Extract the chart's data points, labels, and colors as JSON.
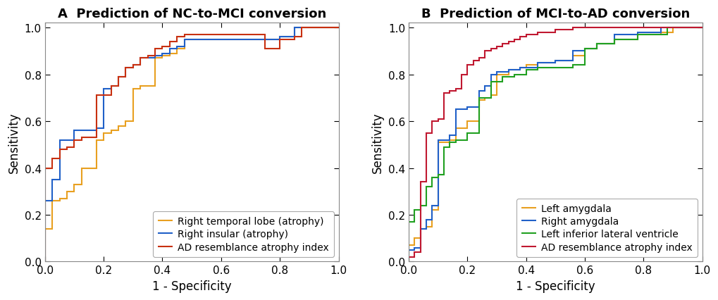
{
  "panel_A": {
    "title": "A  Prediction of NC-to-MCI conversion",
    "curves": [
      {
        "label": "Right temporal lobe (atrophy)",
        "color": "#E8A020",
        "fpr": [
          0.0,
          0.0,
          0.025,
          0.025,
          0.05,
          0.05,
          0.075,
          0.075,
          0.1,
          0.1,
          0.125,
          0.125,
          0.175,
          0.175,
          0.2,
          0.2,
          0.225,
          0.225,
          0.25,
          0.25,
          0.275,
          0.275,
          0.3,
          0.3,
          0.325,
          0.325,
          0.375,
          0.375,
          0.4,
          0.4,
          0.425,
          0.425,
          0.45,
          0.45,
          0.475,
          0.475,
          0.8,
          0.8,
          0.85,
          0.85,
          1.0
        ],
        "tpr": [
          0.0,
          0.14,
          0.14,
          0.26,
          0.26,
          0.27,
          0.27,
          0.3,
          0.3,
          0.33,
          0.33,
          0.4,
          0.4,
          0.52,
          0.52,
          0.55,
          0.55,
          0.56,
          0.56,
          0.58,
          0.58,
          0.6,
          0.6,
          0.74,
          0.74,
          0.75,
          0.75,
          0.87,
          0.87,
          0.88,
          0.88,
          0.89,
          0.89,
          0.91,
          0.91,
          0.95,
          0.95,
          0.96,
          0.96,
          1.0,
          1.0
        ]
      },
      {
        "label": "Right insular (atrophy)",
        "color": "#2060C8",
        "fpr": [
          0.0,
          0.0,
          0.025,
          0.025,
          0.05,
          0.05,
          0.1,
          0.1,
          0.175,
          0.175,
          0.2,
          0.2,
          0.225,
          0.225,
          0.25,
          0.25,
          0.275,
          0.275,
          0.3,
          0.3,
          0.325,
          0.325,
          0.375,
          0.375,
          0.4,
          0.4,
          0.425,
          0.425,
          0.45,
          0.45,
          0.475,
          0.475,
          0.8,
          0.8,
          0.85,
          0.85,
          1.0
        ],
        "tpr": [
          0.0,
          0.26,
          0.26,
          0.35,
          0.35,
          0.52,
          0.52,
          0.56,
          0.56,
          0.57,
          0.57,
          0.74,
          0.74,
          0.75,
          0.75,
          0.79,
          0.79,
          0.83,
          0.83,
          0.84,
          0.84,
          0.87,
          0.87,
          0.88,
          0.88,
          0.89,
          0.89,
          0.91,
          0.91,
          0.92,
          0.92,
          0.95,
          0.95,
          0.96,
          0.96,
          1.0,
          1.0
        ]
      },
      {
        "label": "AD resemblance atrophy index",
        "color": "#C83010",
        "fpr": [
          0.0,
          0.0,
          0.025,
          0.025,
          0.05,
          0.05,
          0.075,
          0.075,
          0.1,
          0.1,
          0.125,
          0.125,
          0.175,
          0.175,
          0.225,
          0.225,
          0.25,
          0.25,
          0.275,
          0.275,
          0.3,
          0.3,
          0.325,
          0.325,
          0.35,
          0.35,
          0.375,
          0.375,
          0.4,
          0.4,
          0.425,
          0.425,
          0.45,
          0.45,
          0.475,
          0.475,
          0.75,
          0.75,
          0.8,
          0.8,
          0.85,
          0.85,
          0.875,
          0.875,
          1.0
        ],
        "tpr": [
          0.0,
          0.4,
          0.4,
          0.44,
          0.44,
          0.48,
          0.48,
          0.49,
          0.49,
          0.52,
          0.52,
          0.53,
          0.53,
          0.71,
          0.71,
          0.75,
          0.75,
          0.79,
          0.79,
          0.83,
          0.83,
          0.84,
          0.84,
          0.87,
          0.87,
          0.88,
          0.88,
          0.91,
          0.91,
          0.92,
          0.92,
          0.94,
          0.94,
          0.96,
          0.96,
          0.97,
          0.97,
          0.91,
          0.91,
          0.95,
          0.95,
          0.96,
          0.96,
          1.0,
          1.0
        ]
      }
    ]
  },
  "panel_B": {
    "title": "B  Prediction of MCI-to-AD conversion",
    "curves": [
      {
        "label": "Left amygdala",
        "color": "#E8A020",
        "fpr": [
          0.0,
          0.0,
          0.02,
          0.02,
          0.04,
          0.04,
          0.06,
          0.06,
          0.08,
          0.08,
          0.1,
          0.1,
          0.14,
          0.14,
          0.16,
          0.16,
          0.2,
          0.2,
          0.24,
          0.24,
          0.26,
          0.26,
          0.28,
          0.28,
          0.3,
          0.3,
          0.34,
          0.34,
          0.38,
          0.38,
          0.4,
          0.4,
          0.44,
          0.44,
          0.5,
          0.5,
          0.56,
          0.56,
          0.6,
          0.6,
          0.64,
          0.64,
          0.7,
          0.7,
          0.78,
          0.78,
          0.86,
          0.86,
          0.9,
          0.9,
          1.0
        ],
        "tpr": [
          0.0,
          0.07,
          0.07,
          0.1,
          0.1,
          0.14,
          0.14,
          0.15,
          0.15,
          0.22,
          0.22,
          0.51,
          0.51,
          0.52,
          0.52,
          0.57,
          0.57,
          0.6,
          0.6,
          0.69,
          0.69,
          0.7,
          0.7,
          0.71,
          0.71,
          0.8,
          0.8,
          0.82,
          0.82,
          0.83,
          0.83,
          0.84,
          0.84,
          0.85,
          0.85,
          0.86,
          0.86,
          0.88,
          0.88,
          0.91,
          0.91,
          0.93,
          0.93,
          0.95,
          0.95,
          0.97,
          0.97,
          0.98,
          0.98,
          1.0,
          1.0
        ]
      },
      {
        "label": "Right amygdala",
        "color": "#2060C8",
        "fpr": [
          0.0,
          0.0,
          0.02,
          0.02,
          0.04,
          0.04,
          0.06,
          0.06,
          0.08,
          0.08,
          0.1,
          0.1,
          0.14,
          0.14,
          0.16,
          0.16,
          0.2,
          0.2,
          0.24,
          0.24,
          0.26,
          0.26,
          0.28,
          0.28,
          0.3,
          0.3,
          0.34,
          0.34,
          0.38,
          0.38,
          0.44,
          0.44,
          0.5,
          0.5,
          0.56,
          0.56,
          0.6,
          0.6,
          0.64,
          0.64,
          0.7,
          0.7,
          0.78,
          0.78,
          0.86,
          0.86,
          0.9,
          0.9,
          0.92,
          0.92,
          1.0
        ],
        "tpr": [
          0.0,
          0.05,
          0.05,
          0.06,
          0.06,
          0.14,
          0.14,
          0.18,
          0.18,
          0.24,
          0.24,
          0.52,
          0.52,
          0.54,
          0.54,
          0.65,
          0.65,
          0.66,
          0.66,
          0.73,
          0.73,
          0.75,
          0.75,
          0.8,
          0.8,
          0.81,
          0.81,
          0.82,
          0.82,
          0.83,
          0.83,
          0.85,
          0.85,
          0.86,
          0.86,
          0.9,
          0.9,
          0.91,
          0.91,
          0.93,
          0.93,
          0.97,
          0.97,
          0.98,
          0.98,
          1.0,
          1.0,
          1.0,
          1.0,
          1.0,
          1.0
        ]
      },
      {
        "label": "Left inferior lateral ventricle",
        "color": "#20A020",
        "fpr": [
          0.0,
          0.0,
          0.02,
          0.02,
          0.04,
          0.04,
          0.06,
          0.06,
          0.08,
          0.08,
          0.1,
          0.1,
          0.12,
          0.12,
          0.14,
          0.14,
          0.16,
          0.16,
          0.2,
          0.2,
          0.24,
          0.24,
          0.28,
          0.28,
          0.32,
          0.32,
          0.36,
          0.36,
          0.4,
          0.4,
          0.44,
          0.44,
          0.56,
          0.56,
          0.6,
          0.6,
          0.64,
          0.64,
          0.7,
          0.7,
          0.78,
          0.78,
          0.88,
          0.88,
          0.92,
          0.92,
          0.96,
          0.96,
          1.0
        ],
        "tpr": [
          0.0,
          0.17,
          0.17,
          0.22,
          0.22,
          0.24,
          0.24,
          0.32,
          0.32,
          0.36,
          0.36,
          0.37,
          0.37,
          0.49,
          0.49,
          0.51,
          0.51,
          0.52,
          0.52,
          0.55,
          0.55,
          0.7,
          0.7,
          0.77,
          0.77,
          0.79,
          0.79,
          0.8,
          0.8,
          0.82,
          0.82,
          0.83,
          0.83,
          0.84,
          0.84,
          0.91,
          0.91,
          0.93,
          0.93,
          0.95,
          0.95,
          0.97,
          0.97,
          1.0,
          1.0,
          1.0,
          1.0,
          1.0,
          1.0
        ]
      },
      {
        "label": "AD resemblance atrophy index",
        "color": "#C01830",
        "fpr": [
          0.0,
          0.0,
          0.02,
          0.02,
          0.04,
          0.04,
          0.06,
          0.06,
          0.08,
          0.08,
          0.1,
          0.1,
          0.12,
          0.12,
          0.14,
          0.14,
          0.16,
          0.16,
          0.18,
          0.18,
          0.2,
          0.2,
          0.22,
          0.22,
          0.24,
          0.24,
          0.26,
          0.26,
          0.28,
          0.28,
          0.3,
          0.3,
          0.32,
          0.32,
          0.34,
          0.34,
          0.36,
          0.36,
          0.38,
          0.38,
          0.4,
          0.4,
          0.44,
          0.44,
          0.5,
          0.5,
          0.56,
          0.56,
          0.6,
          0.6,
          0.64,
          0.64,
          0.7,
          0.7,
          0.78,
          0.78,
          0.86,
          0.86,
          0.9,
          0.9,
          0.96,
          0.96,
          1.0
        ],
        "tpr": [
          0.0,
          0.02,
          0.02,
          0.04,
          0.04,
          0.34,
          0.34,
          0.55,
          0.55,
          0.6,
          0.6,
          0.61,
          0.61,
          0.72,
          0.72,
          0.73,
          0.73,
          0.74,
          0.74,
          0.8,
          0.8,
          0.84,
          0.84,
          0.86,
          0.86,
          0.87,
          0.87,
          0.9,
          0.9,
          0.91,
          0.91,
          0.92,
          0.92,
          0.93,
          0.93,
          0.94,
          0.94,
          0.95,
          0.95,
          0.96,
          0.96,
          0.97,
          0.97,
          0.98,
          0.98,
          0.99,
          0.99,
          1.0,
          1.0,
          1.0,
          1.0,
          1.0,
          1.0,
          1.0,
          1.0,
          1.0,
          1.0,
          1.0,
          1.0,
          1.0,
          1.0,
          1.0,
          1.0
        ]
      }
    ]
  },
  "xlabel": "1 - Specificity",
  "ylabel": "Sensitivity",
  "xlim": [
    0,
    1
  ],
  "ylim": [
    0,
    1.02
  ],
  "xticks": [
    0,
    0.2,
    0.4,
    0.6,
    0.8,
    1
  ],
  "yticks": [
    0,
    0.2,
    0.4,
    0.6,
    0.8,
    1
  ],
  "linewidth": 1.5,
  "title_fontsize": 13,
  "axis_label_fontsize": 12,
  "tick_fontsize": 11,
  "legend_fontsize": 10,
  "background_color": "#ffffff",
  "spine_color": "#888888"
}
